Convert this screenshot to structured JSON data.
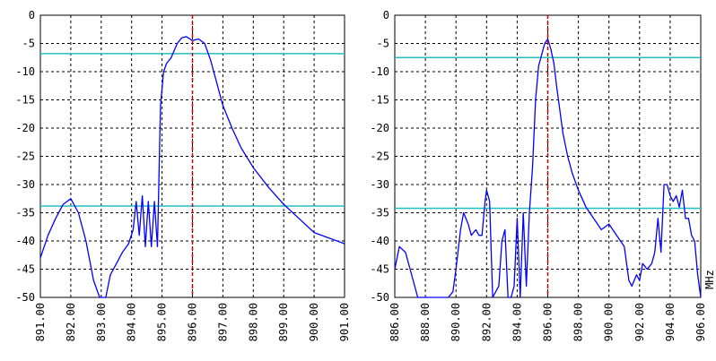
{
  "colors": {
    "background": "#ffffff",
    "trace": "#0000ff",
    "limit_line": "#20c0c0",
    "marker": "#cc0000",
    "grid": "#000000"
  },
  "chart_data": [
    {
      "type": "line",
      "title": "",
      "xlabel": "",
      "ylabel": "",
      "xlim": [
        891,
        901
      ],
      "ylim": [
        -50,
        0
      ],
      "grid": true,
      "legend": "none",
      "xticks": [
        "891.00",
        "892.00",
        "893.00",
        "894.00",
        "895.00",
        "896.00",
        "897.00",
        "898.00",
        "899.00",
        "900.00",
        "901.00"
      ],
      "yticks": [
        "0",
        "-5",
        "-10",
        "-15",
        "-20",
        "-25",
        "-30",
        "-35",
        "-40",
        "-45",
        "-50"
      ],
      "marker_x": 896.0,
      "hlines": [
        -6.8,
        -33.8
      ],
      "series": [
        {
          "x": [
            891.0,
            891.25,
            891.5,
            891.75,
            892.0,
            892.25,
            892.5,
            892.75,
            892.95,
            893.15,
            893.3,
            893.5,
            893.7,
            893.9,
            894.05,
            894.15,
            894.25,
            894.35,
            894.45,
            894.55,
            894.65,
            894.75,
            894.85,
            894.95,
            895.05,
            895.15,
            895.3,
            895.5,
            895.65,
            895.8,
            896.0,
            896.2,
            896.4,
            896.6,
            896.8,
            897.0,
            897.3,
            897.6,
            898.0,
            898.5,
            899.0,
            899.5,
            900.0,
            900.5,
            901.0
          ],
          "y": [
            -43,
            -39,
            -36,
            -33.5,
            -32.5,
            -35,
            -40,
            -47,
            -50,
            -50,
            -46,
            -44,
            -42,
            -40.5,
            -38,
            -33,
            -39,
            -32,
            -41,
            -33,
            -41,
            -33,
            -41,
            -16,
            -10,
            -8.5,
            -7.5,
            -5,
            -4,
            -3.8,
            -4.5,
            -4.2,
            -5,
            -8,
            -12,
            -16,
            -20,
            -23.5,
            -27,
            -30.5,
            -33.5,
            -36,
            -38.5,
            -39.5,
            -40.5
          ]
        }
      ]
    },
    {
      "type": "line",
      "title": "",
      "xlabel": "MHz",
      "ylabel": "",
      "xlim": [
        886,
        906
      ],
      "ylim": [
        -50,
        0
      ],
      "grid": true,
      "legend": "none",
      "xticks": [
        "886.00",
        "888.00",
        "890.00",
        "892.00",
        "894.00",
        "896.00",
        "898.00",
        "900.00",
        "902.00",
        "904.00",
        "906.00"
      ],
      "yticks": [
        "0",
        "-5",
        "-10",
        "-15",
        "-20",
        "-25",
        "-30",
        "-35",
        "-40",
        "-45",
        "-50"
      ],
      "marker_x": 896.0,
      "hlines": [
        -7.5,
        -34.2
      ],
      "series": [
        {
          "x": [
            886.0,
            886.3,
            886.7,
            887.0,
            887.3,
            887.5,
            888.0,
            888.5,
            889.0,
            889.5,
            889.8,
            890.0,
            890.3,
            890.5,
            890.8,
            891.0,
            891.3,
            891.5,
            891.7,
            891.9,
            892.0,
            892.2,
            892.4,
            892.6,
            892.8,
            893.0,
            893.2,
            893.4,
            893.6,
            893.8,
            894.0,
            894.2,
            894.4,
            894.6,
            894.8,
            895.0,
            895.2,
            895.4,
            895.6,
            895.8,
            896.0,
            896.2,
            896.4,
            896.6,
            896.8,
            897.0,
            897.3,
            897.6,
            898.0,
            898.5,
            899.0,
            899.5,
            900.0,
            900.5,
            901.0,
            901.3,
            901.5,
            901.8,
            902.0,
            902.2,
            902.5,
            902.8,
            903.0,
            903.2,
            903.4,
            903.6,
            903.8,
            904.0,
            904.2,
            904.4,
            904.6,
            904.8,
            905.0,
            905.2,
            905.4,
            905.6,
            905.8,
            906.0
          ],
          "y": [
            -45,
            -41,
            -42,
            -45,
            -48,
            -50,
            -50,
            -50,
            -50,
            -50,
            -49,
            -45,
            -38,
            -35,
            -37,
            -39,
            -38,
            -39,
            -39,
            -33,
            -31,
            -33,
            -50,
            -49,
            -48,
            -40,
            -38,
            -50,
            -50,
            -48,
            -36,
            -50,
            -35,
            -48,
            -35,
            -27,
            -15,
            -9,
            -7,
            -5,
            -4.2,
            -6,
            -8.5,
            -13,
            -17,
            -21,
            -25,
            -28,
            -31,
            -34,
            -36,
            -38,
            -37,
            -39,
            -41,
            -47,
            -48,
            -46,
            -47,
            -44,
            -45,
            -44,
            -42,
            -36,
            -42,
            -30,
            -30,
            -32,
            -33,
            -32,
            -34,
            -31,
            -36,
            -36,
            -39,
            -40,
            -46,
            -50
          ]
        }
      ]
    }
  ]
}
